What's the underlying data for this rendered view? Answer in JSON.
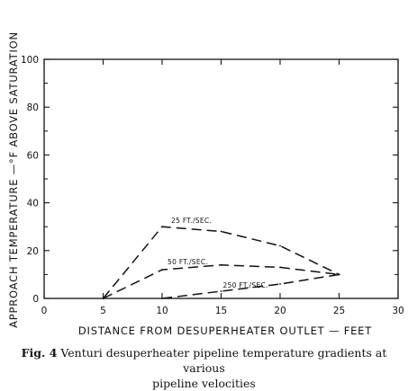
{
  "chart_data": {
    "type": "line",
    "xlabel": "DISTANCE  FROM  DESUPERHEATER  OUTLET — FEET",
    "ylabel": "APPROACH  TEMPERATURE —°F  ABOVE  SATURATION",
    "xlim": [
      0,
      30
    ],
    "ylim": [
      0,
      100
    ],
    "xticks": [
      "0",
      "5",
      "10",
      "15",
      "20",
      "25",
      "30"
    ],
    "yticks": [
      "0",
      "20",
      "40",
      "60",
      "80",
      "100"
    ],
    "grid": false,
    "line_style": "dashed",
    "series": [
      {
        "name": "25 FT./SEC.",
        "x": [
          5,
          10,
          15,
          20,
          25
        ],
        "y": [
          0,
          30,
          28,
          22,
          10
        ]
      },
      {
        "name": "50 FT./SEC.",
        "x": [
          5,
          10,
          15,
          20,
          25
        ],
        "y": [
          0,
          12,
          14,
          13,
          10
        ]
      },
      {
        "name": "250 FT./SEC.",
        "x": [
          10,
          15,
          20,
          25
        ],
        "y": [
          0,
          3,
          6,
          10
        ]
      }
    ]
  },
  "caption": {
    "figure_number": "Fig. 4",
    "line1": "Venturi desuperheater pipeline temperature gradients at various",
    "line2": "pipeline velocities"
  }
}
